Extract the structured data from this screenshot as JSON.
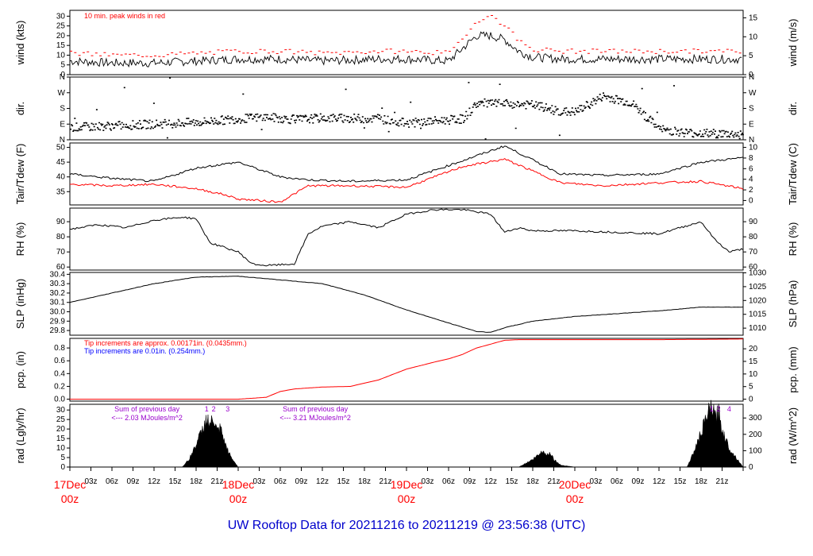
{
  "title": "UW Rooftop Data for 20211216  to  20211219 @ 23:56:38  (UTC)",
  "colors": {
    "frame": "#000000",
    "primary": "#000000",
    "peak": "#ff0000",
    "dewpoint": "#ff0000",
    "precip": "#ff0000",
    "note_red": "#ff0000",
    "note_blue": "#0000ff",
    "day_label": "#ff0000",
    "purple": "#9900cc",
    "title": "#0000cc"
  },
  "x_axis": {
    "type": "time",
    "start": "2021-12-17T00:00Z",
    "end": "2021-12-20T00:00Z",
    "hour_labels": [
      "03z",
      "06z",
      "09z",
      "12z",
      "15z",
      "18z",
      "21z"
    ],
    "day_labels": [
      {
        "date": "17Dec",
        "time": "00z"
      },
      {
        "date": "18Dec",
        "time": "00z"
      },
      {
        "date": "19Dec",
        "time": "00z"
      },
      {
        "date": "20Dec",
        "time": "00z"
      }
    ]
  },
  "chart_data": [
    {
      "id": "wind",
      "type": "line",
      "ylabel_left": "wind (kts)",
      "ylabel_right": "wind (m/s)",
      "ylim": [
        0,
        33
      ],
      "left_ticks": [
        0,
        5,
        10,
        15,
        20,
        25,
        30
      ],
      "right_ticks": [
        0,
        5,
        10,
        15
      ],
      "right_factor": 1.94384,
      "annotation": "10 min. peak winds in red",
      "series": [
        {
          "role": "mean",
          "x_hours": [
            0,
            6,
            12,
            18,
            24,
            30,
            36,
            44,
            48,
            54,
            58,
            60,
            62,
            64,
            66,
            70,
            76,
            84,
            90,
            96
          ],
          "y": [
            7,
            6,
            6,
            7,
            8,
            8,
            7,
            8,
            8,
            7,
            20,
            20,
            18,
            12,
            9,
            8,
            8,
            8,
            8,
            8
          ]
        },
        {
          "role": "peak",
          "x_hours": [
            0,
            6,
            12,
            18,
            24,
            30,
            36,
            44,
            48,
            54,
            58,
            60,
            62,
            64,
            66,
            70,
            76,
            84,
            90,
            96
          ],
          "y": [
            11,
            10,
            10,
            11,
            12,
            12,
            11,
            12,
            12,
            11,
            28,
            30,
            25,
            17,
            13,
            12,
            12,
            12,
            12,
            12
          ]
        }
      ]
    },
    {
      "id": "dir",
      "type": "scatter",
      "ylabel_left": "dir.",
      "ylabel_right": "dir.",
      "ylim": [
        0,
        360
      ],
      "tick_values": [
        0,
        90,
        180,
        270,
        360
      ],
      "tick_labels": [
        "N",
        "E",
        "S",
        "W",
        "N"
      ],
      "series": [
        {
          "x_hours": [
            0,
            6,
            12,
            18,
            24,
            28,
            32,
            36,
            44,
            48,
            56,
            58,
            66,
            70,
            72,
            76,
            80,
            84,
            88,
            96
          ],
          "y": [
            70,
            80,
            90,
            100,
            120,
            130,
            115,
            125,
            120,
            95,
            120,
            210,
            200,
            160,
            160,
            250,
            210,
            60,
            40,
            30
          ]
        }
      ]
    },
    {
      "id": "temp",
      "type": "line",
      "ylabel_left": "Tair/Tdew (F)",
      "ylabel_right": "Tair/Tdew (C)",
      "ylim": [
        30.5,
        51.5
      ],
      "left_ticks": [
        35,
        40,
        45,
        50
      ],
      "right_ticks": [
        0,
        2,
        4,
        6,
        8,
        10
      ],
      "series": [
        {
          "role": "air",
          "x_hours": [
            0,
            6,
            12,
            18,
            24,
            30,
            34,
            40,
            48,
            56,
            62,
            70,
            76,
            84,
            90,
            96
          ],
          "y": [
            41,
            39.5,
            38.5,
            43,
            45,
            40,
            39,
            38.5,
            39,
            45.5,
            50.5,
            41,
            40.5,
            41,
            45,
            46.5
          ]
        },
        {
          "role": "dew",
          "x_hours": [
            0,
            6,
            12,
            18,
            22,
            24,
            30,
            34,
            40,
            48,
            56,
            62,
            70,
            76,
            84,
            90,
            96
          ],
          "y": [
            37.5,
            37,
            37.5,
            36,
            34,
            32.5,
            31.5,
            37,
            37,
            36.5,
            43.5,
            46,
            38,
            37,
            38,
            38.5,
            36
          ]
        }
      ]
    },
    {
      "id": "rh",
      "type": "line",
      "ylabel_left": "RH (%)",
      "ylabel_right": "RH (%)",
      "ylim": [
        58,
        99
      ],
      "left_ticks": [
        60,
        70,
        80,
        90
      ],
      "right_ticks": [
        60,
        70,
        80,
        90
      ],
      "series": [
        {
          "x_hours": [
            0,
            4,
            8,
            12,
            16,
            18,
            20,
            24,
            26,
            28,
            32,
            34,
            36,
            40,
            44,
            48,
            52,
            56,
            60,
            62,
            64,
            66,
            72,
            78,
            84,
            90,
            92,
            94,
            96
          ],
          "y": [
            85,
            88,
            86,
            91,
            93,
            92,
            76,
            70,
            62,
            61,
            62,
            82,
            87,
            90,
            86,
            95,
            98,
            98,
            95,
            83,
            86,
            84,
            84,
            83,
            82,
            90,
            78,
            70,
            72
          ]
        }
      ]
    },
    {
      "id": "slp",
      "type": "line",
      "ylabel_left": "SLP (inHg)",
      "ylabel_right": "SLP (hPa)",
      "ylim": [
        29.75,
        30.42
      ],
      "left_ticks": [
        29.8,
        29.9,
        30.0,
        30.1,
        30.2,
        30.3,
        30.4
      ],
      "right_ticks": [
        1010,
        1015,
        1020,
        1025,
        1030
      ],
      "series": [
        {
          "x_hours": [
            0,
            6,
            12,
            18,
            24,
            30,
            36,
            42,
            48,
            54,
            58,
            60,
            62,
            66,
            72,
            78,
            84,
            90,
            96
          ],
          "y": [
            30.1,
            30.2,
            30.3,
            30.37,
            30.38,
            30.34,
            30.3,
            30.18,
            30.02,
            29.88,
            29.79,
            29.78,
            29.83,
            29.9,
            29.95,
            29.98,
            30.01,
            30.05,
            30.05
          ]
        }
      ]
    },
    {
      "id": "pcp",
      "type": "line",
      "ylabel_left": "pcp. (in)",
      "ylabel_right": "pcp. (mm)",
      "ylim": [
        -0.03,
        0.95
      ],
      "left_ticks": [
        0.0,
        0.2,
        0.4,
        0.6,
        0.8
      ],
      "right_ticks": [
        0,
        5,
        10,
        15,
        20
      ],
      "notes": [
        "Tip increments are approx. 0.00171in. (0.0435mm.)",
        "Tip increments are 0.01in. (0.254mm.)"
      ],
      "series": [
        {
          "x_hours": [
            0,
            24,
            28,
            30,
            32,
            36,
            40,
            44,
            48,
            52,
            54,
            56,
            58,
            60,
            62,
            64,
            66,
            72,
            84,
            96
          ],
          "y": [
            0,
            0,
            0.03,
            0.12,
            0.16,
            0.19,
            0.2,
            0.3,
            0.47,
            0.58,
            0.63,
            0.7,
            0.8,
            0.86,
            0.92,
            0.93,
            0.93,
            0.93,
            0.93,
            0.94
          ]
        }
      ]
    },
    {
      "id": "rad",
      "type": "area",
      "ylabel_left": "rad (Lgly/hr)",
      "ylabel_right": "rad (W/m^2)",
      "ylim": [
        0,
        33
      ],
      "left_ticks": [
        0,
        5,
        10,
        15,
        20,
        25,
        30
      ],
      "right_ticks": [
        0,
        100,
        200,
        300
      ],
      "series": [
        {
          "x_hours": [
            0,
            16,
            17,
            18,
            19,
            19.5,
            20,
            20.5,
            21,
            21.5,
            22,
            23,
            24,
            64,
            65,
            66,
            67,
            67.5,
            68,
            68.5,
            69,
            70,
            72,
            88,
            89,
            90,
            91,
            91.5,
            92,
            92.5,
            93,
            94,
            96
          ],
          "y": [
            0,
            0,
            4,
            12,
            20,
            26,
            22,
            25,
            18,
            20,
            13,
            5,
            0,
            0,
            2,
            4,
            7,
            9,
            6,
            8,
            4,
            1,
            0,
            0,
            8,
            18,
            28,
            32,
            26,
            29,
            20,
            10,
            0
          ]
        }
      ],
      "notes": [
        {
          "label": "Sum of previous day",
          "value": "<--- 2.03 MJoules/m^2",
          "hour": 8
        },
        {
          "label": "Sum of previous day",
          "value": "<--- 3.21 MJoules/m^2",
          "hour": 32
        }
      ],
      "markers": [
        {
          "label": "1",
          "hour": 19.5
        },
        {
          "label": "2",
          "hour": 20.5
        },
        {
          "label": "3",
          "hour": 22.5
        },
        {
          "label": "1",
          "hour": 91.5
        },
        {
          "label": "2",
          "hour": 92.5
        },
        {
          "label": "4",
          "hour": 94
        }
      ]
    }
  ]
}
